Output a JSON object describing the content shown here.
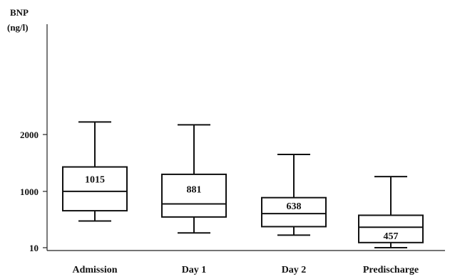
{
  "chart_data": {
    "type": "box",
    "ylabel_line1": "BNP",
    "ylabel_line2": "(ng/l)",
    "yticks": [
      {
        "label": "10",
        "value": 10
      },
      {
        "label": "1000",
        "value": 1000
      },
      {
        "label": "2000",
        "value": 2000
      }
    ],
    "ylim": [
      -40,
      3940
    ],
    "categories": [
      "Admission",
      "Day 1",
      "Day 2",
      "Predischarge"
    ],
    "boxes": [
      {
        "whisker_low": 480,
        "q1": 660,
        "median": 1000,
        "q3": 1430,
        "whisker_high": 2220,
        "label": "1015",
        "label_pos": "above-median"
      },
      {
        "whisker_low": 270,
        "q1": 550,
        "median": 780,
        "q3": 1300,
        "whisker_high": 2170,
        "label": "881",
        "label_pos": "above-median"
      },
      {
        "whisker_low": 230,
        "q1": 380,
        "median": 610,
        "q3": 890,
        "whisker_high": 1650,
        "label": "638",
        "label_pos": "above-median"
      },
      {
        "whisker_low": 10,
        "q1": 100,
        "median": 370,
        "q3": 580,
        "whisker_high": 1260,
        "label": "457",
        "label_pos": "below-median"
      }
    ],
    "grid": false,
    "legend": "none"
  }
}
